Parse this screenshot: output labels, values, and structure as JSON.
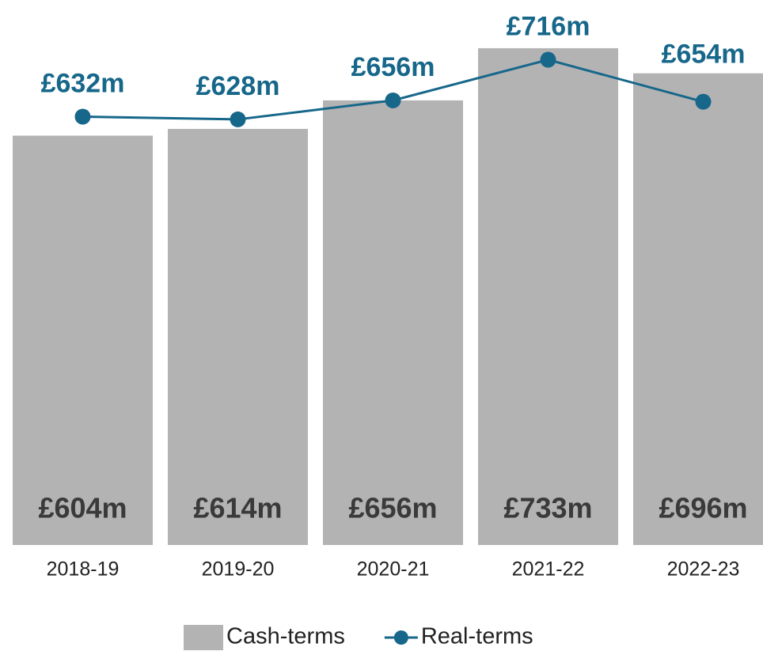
{
  "chart_data": {
    "type": "bar",
    "categories": [
      "2018-19",
      "2019-20",
      "2020-21",
      "2021-22",
      "2022-23"
    ],
    "series": [
      {
        "name": "Cash-terms",
        "type": "bar",
        "color": "#b3b3b3",
        "values": [
          604,
          614,
          656,
          733,
          696
        ],
        "value_labels": [
          "£604m",
          "£614m",
          "£656m",
          "£733m",
          "£696m"
        ]
      },
      {
        "name": "Real-terms",
        "type": "line",
        "color": "#17678a",
        "values": [
          632,
          628,
          656,
          716,
          654
        ],
        "value_labels": [
          "£632m",
          "£628m",
          "£656m",
          "£716m",
          "£654m"
        ]
      }
    ]
  }
}
